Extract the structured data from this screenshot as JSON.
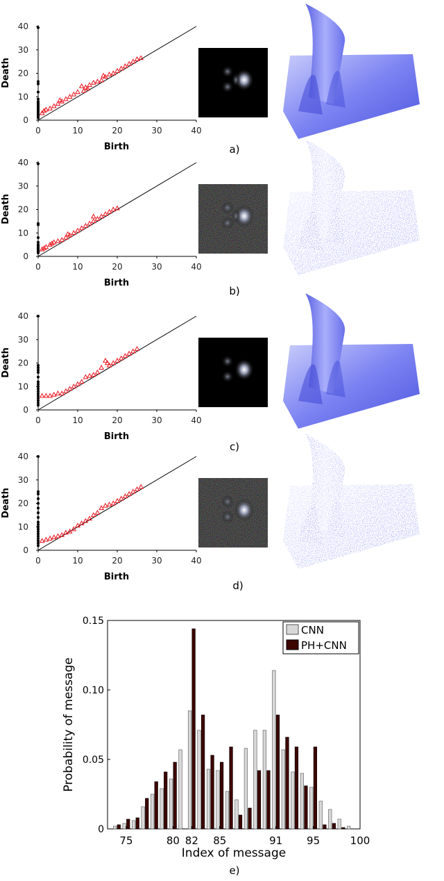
{
  "colors": {
    "diagonal": "#000000",
    "point_black": "#000000",
    "point_red": "#e8111b",
    "surface_light": "#b7bdfb",
    "surface_dark": "#3f47d6",
    "cnn_bar": "#d8d8d8",
    "phcnn_bar": "#3d0500"
  },
  "panels": [
    {
      "caption": "a)",
      "noisy": false,
      "xlabel": "Birth",
      "ylabel": "Death"
    },
    {
      "caption": "b)",
      "noisy": true,
      "xlabel": "Birth",
      "ylabel": "Death"
    },
    {
      "caption": "c)",
      "noisy": false,
      "xlabel": "Birth",
      "ylabel": "Death"
    },
    {
      "caption": "d)",
      "noisy": true,
      "xlabel": "Birth",
      "ylabel": "Death"
    }
  ],
  "chart_data": [
    {
      "type": "scatter",
      "panel": "a)",
      "xlabel": "Birth",
      "ylabel": "Death",
      "xlim": [
        0,
        40
      ],
      "ylim": [
        0,
        40
      ],
      "xticks": [
        "0",
        "10",
        "20",
        "30",
        "40"
      ],
      "yticks": [
        "0",
        "10",
        "20",
        "30",
        "40"
      ],
      "series": [
        {
          "marker": "dot",
          "points": [
            [
              0,
              39.5
            ],
            [
              0,
              16.5
            ],
            [
              0,
              15.5
            ],
            [
              0,
              12
            ],
            [
              0,
              9
            ],
            [
              0,
              8
            ],
            [
              0,
              7.5
            ],
            [
              0,
              7
            ],
            [
              0,
              6.5
            ],
            [
              0,
              6
            ],
            [
              0,
              5.5
            ],
            [
              0,
              5
            ],
            [
              0,
              4.5
            ],
            [
              0,
              4
            ],
            [
              0,
              3.5
            ],
            [
              0,
              3
            ],
            [
              0,
              2.5
            ],
            [
              0,
              2
            ],
            [
              0,
              1.5
            ],
            [
              0,
              1
            ]
          ]
        },
        {
          "marker": "triangle",
          "points": [
            [
              1,
              3
            ],
            [
              1.5,
              4
            ],
            [
              2,
              4.5
            ],
            [
              3,
              5
            ],
            [
              4,
              6
            ],
            [
              5,
              7
            ],
            [
              6,
              8
            ],
            [
              7,
              9
            ],
            [
              8,
              10
            ],
            [
              9,
              11
            ],
            [
              10,
              12
            ],
            [
              11,
              14.5
            ],
            [
              11.5,
              12.5
            ],
            [
              12,
              14
            ],
            [
              13,
              15
            ],
            [
              14,
              16
            ],
            [
              15,
              16.5
            ],
            [
              16,
              17
            ],
            [
              17,
              18.5
            ],
            [
              18,
              19.5
            ],
            [
              19,
              20
            ],
            [
              20,
              21
            ],
            [
              21,
              22
            ],
            [
              22,
              23
            ],
            [
              23,
              24
            ],
            [
              24,
              25
            ],
            [
              25,
              26
            ],
            [
              26,
              26.5
            ],
            [
              5.5,
              8.5
            ],
            [
              12.5,
              13.5
            ],
            [
              16.5,
              19
            ]
          ]
        }
      ]
    },
    {
      "type": "scatter",
      "panel": "b)",
      "xlabel": "Birth",
      "ylabel": "Death",
      "xlim": [
        0,
        40
      ],
      "ylim": [
        0,
        40
      ],
      "xticks": [
        "0",
        "10",
        "20",
        "30",
        "40"
      ],
      "yticks": [
        "0",
        "10",
        "20",
        "30",
        "40"
      ],
      "series": [
        {
          "marker": "dot",
          "points": [
            [
              0,
              39.5
            ],
            [
              0,
              14
            ],
            [
              0,
              13.5
            ],
            [
              0,
              8
            ],
            [
              0,
              6
            ],
            [
              0,
              5
            ],
            [
              0,
              4.5
            ],
            [
              0,
              4
            ],
            [
              0,
              3.5
            ],
            [
              0,
              3
            ],
            [
              0,
              2.5
            ],
            [
              0,
              2
            ],
            [
              0,
              1.5
            ]
          ]
        },
        {
          "marker": "triangle",
          "points": [
            [
              1,
              3
            ],
            [
              1.5,
              3.5
            ],
            [
              2,
              4
            ],
            [
              3,
              5
            ],
            [
              4,
              6
            ],
            [
              5,
              6.5
            ],
            [
              6,
              7
            ],
            [
              7,
              8
            ],
            [
              8,
              9
            ],
            [
              9,
              10
            ],
            [
              10,
              11
            ],
            [
              11,
              12
            ],
            [
              12,
              13
            ],
            [
              13,
              14
            ],
            [
              14,
              15
            ],
            [
              14,
              17
            ],
            [
              15,
              16
            ],
            [
              16,
              17
            ],
            [
              17,
              18
            ],
            [
              18,
              19
            ],
            [
              19,
              20
            ],
            [
              20,
              20.5
            ],
            [
              3.5,
              5.5
            ],
            [
              7.5,
              9.5
            ]
          ]
        }
      ]
    },
    {
      "type": "scatter",
      "panel": "c)",
      "xlabel": "Birth",
      "ylabel": "Death",
      "xlim": [
        0,
        40
      ],
      "ylim": [
        0,
        40
      ],
      "xticks": [
        "0",
        "10",
        "20",
        "30",
        "40"
      ],
      "yticks": [
        "0",
        "10",
        "20",
        "30",
        "40"
      ],
      "series": [
        {
          "marker": "dot",
          "points": [
            [
              0,
              40
            ],
            [
              0,
              19
            ],
            [
              0,
              18
            ],
            [
              0,
              17
            ],
            [
              0,
              16
            ],
            [
              0,
              14
            ],
            [
              0,
              12
            ],
            [
              0,
              11
            ],
            [
              0,
              10
            ],
            [
              0,
              9
            ],
            [
              0,
              8
            ],
            [
              0,
              7
            ],
            [
              0,
              6
            ],
            [
              0,
              5
            ],
            [
              0,
              4
            ],
            [
              0,
              3
            ],
            [
              0,
              2
            ]
          ]
        },
        {
          "marker": "triangle",
          "points": [
            [
              1,
              6
            ],
            [
              2,
              6
            ],
            [
              3,
              6
            ],
            [
              4,
              6.5
            ],
            [
              5,
              7
            ],
            [
              6,
              7
            ],
            [
              7,
              8
            ],
            [
              8,
              9
            ],
            [
              9,
              10
            ],
            [
              10,
              11
            ],
            [
              11,
              12
            ],
            [
              12,
              14
            ],
            [
              13,
              14.5
            ],
            [
              14,
              15
            ],
            [
              15,
              16
            ],
            [
              16,
              18
            ],
            [
              17,
              21
            ],
            [
              17.5,
              20
            ],
            [
              18,
              19
            ],
            [
              19,
              20
            ],
            [
              20,
              21
            ],
            [
              21,
              22
            ],
            [
              22,
              23
            ],
            [
              23,
              24
            ],
            [
              24,
              25
            ],
            [
              25,
              26
            ]
          ]
        }
      ]
    },
    {
      "type": "scatter",
      "panel": "d)",
      "xlabel": "Birth",
      "ylabel": "Death",
      "xlim": [
        0,
        40
      ],
      "ylim": [
        0,
        40
      ],
      "xticks": [
        "0",
        "10",
        "20",
        "30",
        "40"
      ],
      "yticks": [
        "0",
        "10",
        "20",
        "30",
        "40"
      ],
      "series": [
        {
          "marker": "dot",
          "points": [
            [
              0,
              40
            ],
            [
              0,
              25
            ],
            [
              0,
              24
            ],
            [
              0,
              22
            ],
            [
              0,
              20
            ],
            [
              0,
              18
            ],
            [
              0,
              16
            ],
            [
              0,
              14
            ],
            [
              0,
              12
            ],
            [
              0,
              11
            ],
            [
              0,
              10
            ],
            [
              0,
              9
            ],
            [
              0,
              8
            ],
            [
              0,
              7
            ],
            [
              0,
              6
            ],
            [
              0,
              5
            ],
            [
              0,
              4
            ],
            [
              0,
              3
            ],
            [
              0,
              2
            ]
          ]
        },
        {
          "marker": "triangle",
          "points": [
            [
              1,
              4
            ],
            [
              2,
              4.5
            ],
            [
              3,
              5
            ],
            [
              4,
              5.5
            ],
            [
              5,
              6
            ],
            [
              6,
              6.5
            ],
            [
              7,
              7.5
            ],
            [
              8,
              8
            ],
            [
              9,
              9
            ],
            [
              10,
              10.5
            ],
            [
              11,
              11.5
            ],
            [
              12,
              12.5
            ],
            [
              13,
              13.5
            ],
            [
              14,
              15
            ],
            [
              15,
              16
            ],
            [
              16,
              18
            ],
            [
              17,
              19
            ],
            [
              18,
              19.5
            ],
            [
              19,
              20
            ],
            [
              20,
              21
            ],
            [
              21,
              22
            ],
            [
              22,
              23
            ],
            [
              23,
              24
            ],
            [
              24,
              25
            ],
            [
              25,
              26
            ],
            [
              26,
              27
            ]
          ]
        }
      ]
    },
    {
      "type": "bar",
      "panel": "e)",
      "xlabel": "Index of message",
      "ylabel": "Probability of message",
      "xlim": [
        73,
        100
      ],
      "ylim": [
        0,
        0.15
      ],
      "xticks": [
        {
          "v": 75,
          "t": "75"
        },
        {
          "v": 80,
          "t": "80"
        },
        {
          "v": 82,
          "t": "82"
        },
        {
          "v": 85,
          "t": "85"
        },
        {
          "v": 91,
          "t": "91"
        },
        {
          "v": 95,
          "t": "95"
        },
        {
          "v": 100,
          "t": "100"
        }
      ],
      "yticks": [
        {
          "v": 0,
          "t": "0"
        },
        {
          "v": 0.05,
          "t": "0.05"
        },
        {
          "v": 0.1,
          "t": "0.10"
        },
        {
          "v": 0.15,
          "t": "0.15"
        }
      ],
      "x": [
        74,
        75,
        76,
        77,
        78,
        79,
        80,
        81,
        82,
        83,
        84,
        85,
        86,
        87,
        88,
        89,
        90,
        91,
        92,
        93,
        94,
        95,
        96,
        97,
        98,
        99
      ],
      "series": [
        {
          "name": "CNN",
          "values": [
            0.002,
            0.004,
            0.006,
            0.016,
            0.025,
            0.029,
            0.036,
            0.057,
            0.085,
            0.071,
            0.043,
            0.042,
            0.027,
            0.021,
            0.058,
            0.071,
            0.071,
            0.114,
            0.057,
            0.041,
            0.04,
            0.03,
            0.02,
            0.014,
            0.007,
            0.002
          ]
        },
        {
          "name": "PH+CNN",
          "values": [
            0.003,
            0.007,
            0.008,
            0.022,
            0.034,
            0.041,
            0.048,
            0.0,
            0.144,
            0.082,
            0.053,
            0.048,
            0.059,
            0.01,
            0.015,
            0.042,
            0.042,
            0.082,
            0.066,
            0.059,
            0.031,
            0.059,
            0.003,
            0.004,
            0.001,
            0.0
          ]
        }
      ]
    }
  ]
}
